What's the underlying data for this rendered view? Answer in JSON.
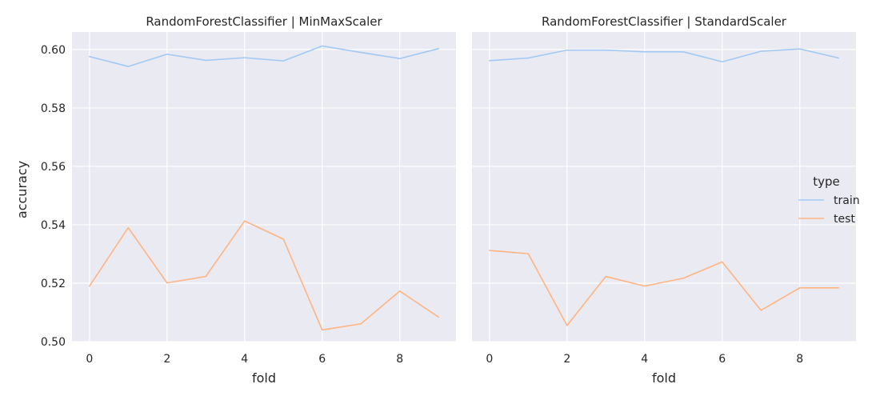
{
  "chart_data": {
    "type": "line",
    "ylabel": "accuracy",
    "xlabel": "fold",
    "xlim": [
      -0.45,
      9.45
    ],
    "ylim": [
      0.5,
      0.606
    ],
    "x_ticks": [
      0,
      2,
      4,
      6,
      8
    ],
    "y_ticks": [
      0.5,
      0.52,
      0.54,
      0.56,
      0.58,
      0.6
    ],
    "grid": true,
    "legend": {
      "title": "type",
      "placement": "right",
      "entries": [
        {
          "name": "train",
          "color": "#a1c9f4"
        },
        {
          "name": "test",
          "color": "#ffb482"
        }
      ]
    },
    "panels": [
      {
        "title": "RandomForestClassifier | MinMaxScaler",
        "x": [
          0,
          1,
          2,
          3,
          4,
          5,
          6,
          7,
          8,
          9
        ],
        "series": [
          {
            "name": "train",
            "color": "#a1c9f4",
            "values": [
              0.5976,
              0.5942,
              0.5984,
              0.5963,
              0.5972,
              0.5961,
              0.6012,
              0.599,
              0.5969,
              0.6003
            ]
          },
          {
            "name": "test",
            "color": "#ffb482",
            "values": [
              0.519,
              0.539,
              0.5201,
              0.5223,
              0.5413,
              0.5351,
              0.504,
              0.5061,
              0.5173,
              0.5084
            ]
          }
        ]
      },
      {
        "title": "RandomForestClassifier | StandardScaler",
        "x": [
          0,
          1,
          2,
          3,
          4,
          5,
          6,
          7,
          8,
          9
        ],
        "series": [
          {
            "name": "train",
            "color": "#a1c9f4",
            "values": [
              0.5962,
              0.5971,
              0.5998,
              0.5998,
              0.5992,
              0.5992,
              0.5958,
              0.5994,
              0.6002,
              0.5971
            ]
          },
          {
            "name": "test",
            "color": "#ffb482",
            "values": [
              0.5312,
              0.5301,
              0.5055,
              0.5223,
              0.519,
              0.5217,
              0.5273,
              0.5107,
              0.5184,
              0.5184
            ]
          }
        ]
      }
    ]
  }
}
